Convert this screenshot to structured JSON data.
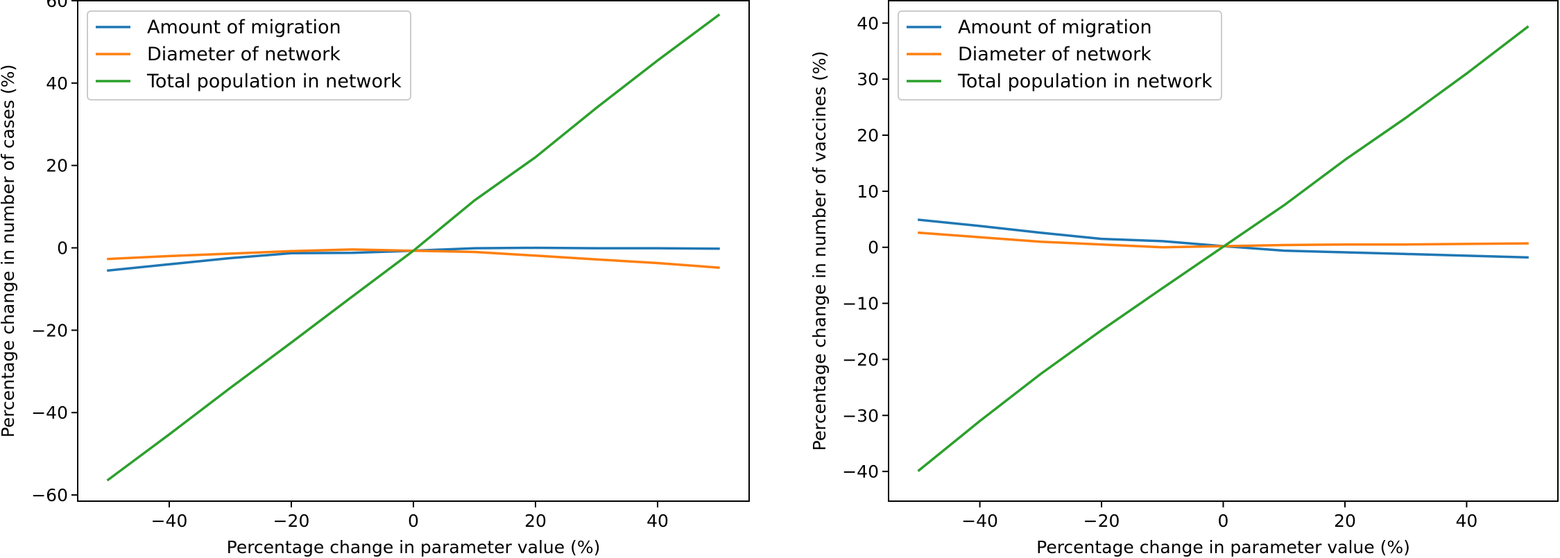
{
  "chart_data": [
    {
      "type": "line",
      "title": "",
      "xlabel": "Percentage change in parameter value (%)",
      "ylabel": "Percentage change in number of cases (%)",
      "xlim": [
        -55,
        55
      ],
      "ylim": [
        -61.5,
        60
      ],
      "xticks": [
        -40,
        -20,
        0,
        20,
        40
      ],
      "yticks": [
        -60,
        -40,
        -20,
        0,
        20,
        40,
        60
      ],
      "grid": false,
      "legend_position": "top-left",
      "x": [
        -50,
        -40,
        -30,
        -20,
        -10,
        0,
        10,
        20,
        30,
        40,
        50
      ],
      "series": [
        {
          "name": "Amount of migration",
          "color": "#1f77b4",
          "values": [
            -5.5,
            -4.0,
            -2.5,
            -1.3,
            -1.2,
            -0.7,
            -0.1,
            0.0,
            -0.1,
            -0.1,
            -0.2
          ]
        },
        {
          "name": "Diameter of network",
          "color": "#ff7f0e",
          "values": [
            -2.7,
            -2.0,
            -1.4,
            -0.8,
            -0.4,
            -0.7,
            -1.0,
            -1.9,
            -2.8,
            -3.7,
            -4.8
          ]
        },
        {
          "name": "Total population in network",
          "color": "#2ca02c",
          "values": [
            -56.3,
            -45.3,
            -34.0,
            -23.0,
            -11.8,
            -0.7,
            11.5,
            22.0,
            34.0,
            45.5,
            56.5
          ]
        }
      ]
    },
    {
      "type": "line",
      "title": "",
      "xlabel": "Percentage change in parameter value (%)",
      "ylabel": "Percentage change in number of vaccines (%)",
      "xlim": [
        -55,
        55
      ],
      "ylim": [
        -45.3,
        44
      ],
      "xticks": [
        -40,
        -20,
        0,
        20,
        40
      ],
      "yticks": [
        -40,
        -30,
        -20,
        -10,
        0,
        10,
        20,
        30,
        40
      ],
      "grid": false,
      "legend_position": "top-left",
      "x": [
        -50,
        -40,
        -30,
        -20,
        -10,
        0,
        10,
        20,
        30,
        40,
        50
      ],
      "series": [
        {
          "name": "Amount of migration",
          "color": "#1f77b4",
          "values": [
            4.9,
            3.8,
            2.6,
            1.5,
            1.1,
            0.2,
            -0.6,
            -0.9,
            -1.2,
            -1.5,
            -1.8
          ]
        },
        {
          "name": "Diameter of network",
          "color": "#ff7f0e",
          "values": [
            2.6,
            1.8,
            1.0,
            0.5,
            0.0,
            0.2,
            0.4,
            0.5,
            0.5,
            0.6,
            0.7
          ]
        },
        {
          "name": "Total population in network",
          "color": "#2ca02c",
          "values": [
            -39.8,
            -31.0,
            -22.6,
            -14.8,
            -7.3,
            0.1,
            7.5,
            15.6,
            23.1,
            31.0,
            39.3
          ]
        }
      ]
    }
  ]
}
